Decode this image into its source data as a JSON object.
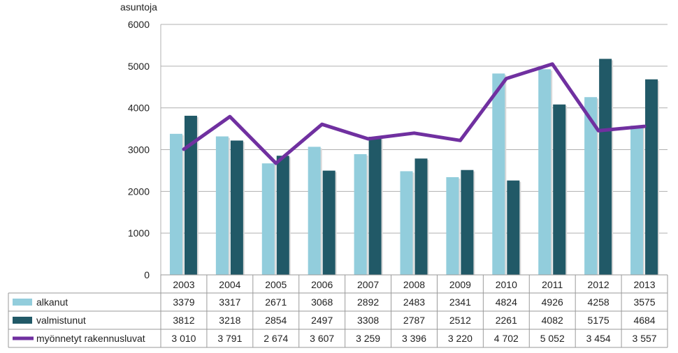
{
  "chart_data": {
    "type": "bar",
    "ylabel": "asuntoja",
    "ylim": [
      0,
      6000
    ],
    "yticks": [
      0,
      1000,
      2000,
      3000,
      4000,
      5000,
      6000
    ],
    "grid": true,
    "legend": "data table",
    "categories": [
      "2003",
      "2004",
      "2005",
      "2006",
      "2007",
      "2008",
      "2009",
      "2010",
      "2011",
      "2012",
      "2013"
    ],
    "series": [
      {
        "name": "alkanut",
        "type": "bar",
        "color": "#92CDDC",
        "values": [
          3379,
          3317,
          2671,
          3068,
          2892,
          2483,
          2341,
          4824,
          4926,
          4258,
          3575
        ],
        "labels": [
          "3379",
          "3317",
          "2671",
          "3068",
          "2892",
          "2483",
          "2341",
          "4824",
          "4926",
          "4258",
          "3575"
        ]
      },
      {
        "name": "valmistunut",
        "type": "bar",
        "color": "#215967",
        "values": [
          3812,
          3218,
          2854,
          2497,
          3308,
          2787,
          2512,
          2261,
          4082,
          5175,
          4684
        ],
        "labels": [
          "3812",
          "3218",
          "2854",
          "2497",
          "3308",
          "2787",
          "2512",
          "2261",
          "4082",
          "5175",
          "4684"
        ]
      },
      {
        "name": "myönnetyt rakennusluvat",
        "type": "line",
        "color": "#7030A0",
        "values": [
          3010,
          3791,
          2674,
          3607,
          3259,
          3396,
          3220,
          4702,
          5052,
          3454,
          3557
        ],
        "labels": [
          "3 010",
          "3 791",
          "2 674",
          "3 607",
          "3 259",
          "3 396",
          "3 220",
          "4 702",
          "5 052",
          "3 454",
          "3 557"
        ]
      }
    ]
  }
}
